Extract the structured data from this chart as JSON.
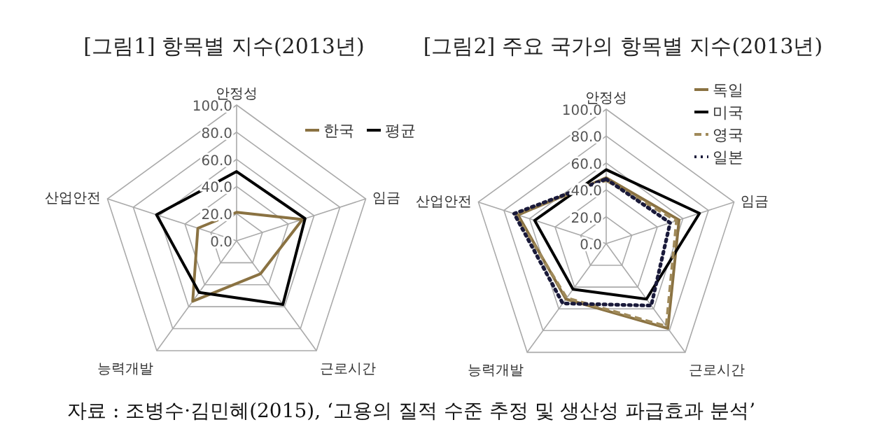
{
  "chart_data": [
    {
      "type": "radar",
      "title": "[그림1] 항목별 지수(2013년)",
      "categories": [
        "안정성",
        "임금",
        "근로시간",
        "능력개발",
        "산업안전"
      ],
      "ylim": [
        0,
        100
      ],
      "yticks": [
        {
          "value": 0,
          "label": "0.0"
        },
        {
          "value": 20,
          "label": "20.0"
        },
        {
          "value": 40,
          "label": "40.0"
        },
        {
          "value": 60,
          "label": "60.0"
        },
        {
          "value": 80,
          "label": "80.0"
        },
        {
          "value": 100,
          "label": "100.0"
        }
      ],
      "grid": true,
      "legend": "top right",
      "annotations": [
        "자료 : 조병수·김민혜(2015), ‘고용의 질적 수준 추정 및 생산성 파급효과 분석’"
      ],
      "series": [
        {
          "name": "한국",
          "color": "#8a7242",
          "line_style": "solid",
          "values": [
            21,
            51,
            30,
            55,
            30
          ]
        },
        {
          "name": "평균",
          "color": "#000000",
          "line_style": "solid",
          "values": [
            51,
            53,
            58,
            47,
            62
          ]
        }
      ]
    },
    {
      "type": "radar",
      "title": "[그림2] 주요 국가의 항목별 지수(2013년)",
      "categories": [
        "안정성",
        "임금",
        "근로시간",
        "능력개발",
        "산업안전"
      ],
      "ylim": [
        0,
        100
      ],
      "yticks": [
        {
          "value": 0,
          "label": "0.0"
        },
        {
          "value": 20,
          "label": "20.0"
        },
        {
          "value": 40,
          "label": "40.0"
        },
        {
          "value": 60,
          "label": "60.0"
        },
        {
          "value": 80,
          "label": "80.0"
        },
        {
          "value": 100,
          "label": "100.0"
        }
      ],
      "grid": true,
      "legend": "top right",
      "series": [
        {
          "name": "독일",
          "color": "#8a7242",
          "line_style": "solid",
          "values": [
            49,
            57,
            78,
            51,
            69
          ]
        },
        {
          "name": "미국",
          "color": "#000000",
          "line_style": "solid",
          "values": [
            55,
            73,
            51,
            42,
            56
          ]
        },
        {
          "name": "영국",
          "color": "#a08a5a",
          "line_style": "dashed",
          "values": [
            47,
            55,
            76,
            50,
            71
          ]
        },
        {
          "name": "일본",
          "color": "#1a1a3a",
          "line_style": "dotted",
          "values": [
            48,
            50,
            57,
            55,
            72
          ]
        }
      ]
    }
  ]
}
